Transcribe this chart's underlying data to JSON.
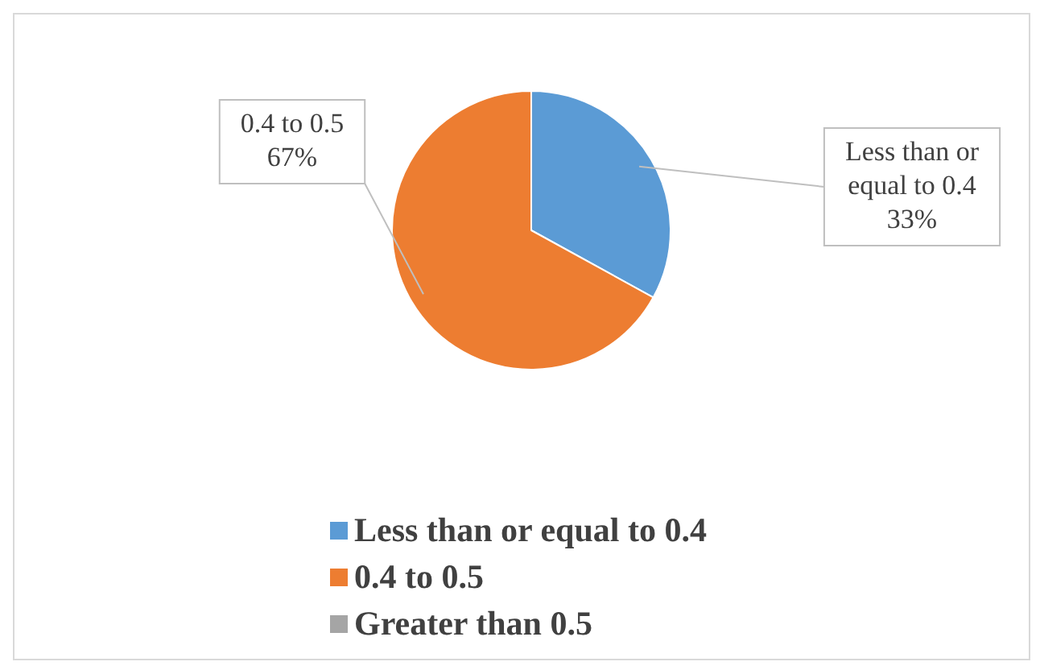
{
  "chart_data": {
    "type": "pie",
    "categories": [
      "Less than or equal to 0.4",
      "0.4 to 0.5",
      "Greater than 0.5"
    ],
    "values": [
      33,
      67,
      0
    ],
    "colors": [
      "#5b9bd5",
      "#ed7d31",
      "#a5a5a5"
    ],
    "value_labels": [
      "33%",
      "67%",
      null
    ],
    "legend": "bottom"
  }
}
